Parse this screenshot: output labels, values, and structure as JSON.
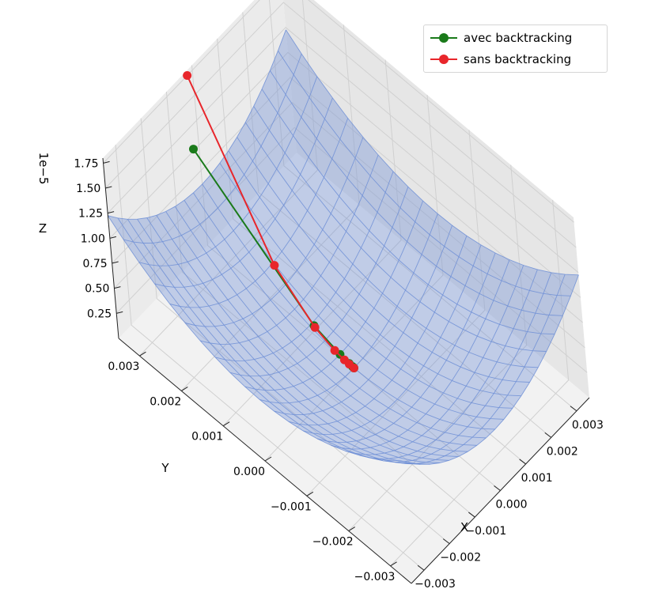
{
  "chart_data": {
    "type": "surface3d",
    "title": "",
    "xlabel": "X",
    "ylabel": "Y",
    "zlabel": "Z",
    "z_offset_label": "1e−5",
    "xlim": [
      -0.0035,
      0.0035
    ],
    "ylim": [
      -0.0035,
      0.0035
    ],
    "zlim": [
      0.0,
      1.8e-05
    ],
    "x_ticks": [
      "−0.003",
      "−0.002",
      "−0.001",
      "0.000",
      "0.001",
      "0.002",
      "0.003"
    ],
    "y_ticks": [
      "−0.003",
      "−0.002",
      "−0.001",
      "0.000",
      "0.001",
      "0.002",
      "0.003"
    ],
    "z_ticks": [
      "0.25",
      "0.50",
      "0.75",
      "1.00",
      "1.25",
      "1.50",
      "1.75"
    ],
    "grid": true,
    "legend_position": "top-right",
    "surface": {
      "function": "quadratic bowl z = (x² + y²) / 2",
      "color": "#6f8fd6"
    },
    "series": [
      {
        "name": "avec backtracking",
        "color": "#1a7a1a",
        "points": [
          [
            0.00035,
            0.0039,
            7.3e-06
          ],
          [
            9e-05,
            0.001,
            5e-07
          ],
          [
            3e-05,
            0.00035,
            6e-08
          ],
          [
            1e-05,
            0.00012,
            1e-08
          ],
          [
            4e-06,
            4e-05,
            0.0
          ],
          [
            1.5e-06,
            1.5e-05,
            0.0
          ],
          [
            5e-07,
            5e-06,
            0.0
          ],
          [
            0.0,
            0.0,
            0.0
          ]
        ]
      },
      {
        "name": "sans backtracking",
        "color": "#e8262b",
        "points": [
          [
            -0.0002,
            0.0035,
            1.75e-05
          ],
          [
            -0.0001,
            0.00175,
            4.4e-06
          ],
          [
            -5e-05,
            0.00088,
            1.1e-06
          ],
          [
            -2.5e-05,
            0.00044,
            2.8e-07
          ],
          [
            -1.2e-05,
            0.00022,
            7e-08
          ],
          [
            -6e-06,
            0.00011,
            2e-08
          ],
          [
            0.0,
            0.0,
            0.0
          ]
        ]
      }
    ]
  }
}
